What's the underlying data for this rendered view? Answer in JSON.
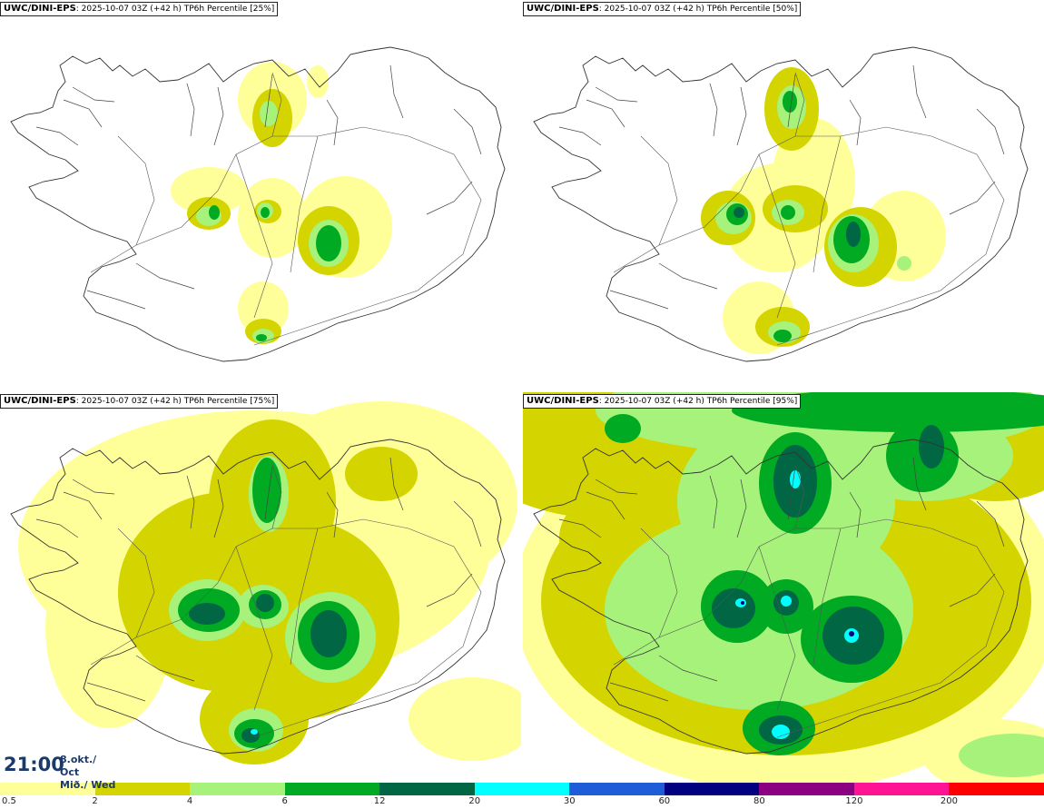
{
  "panels": [
    {
      "model": "UWC/DINI-EPS",
      "run": ": 2025-10-07 03Z (+42 h)",
      "field": " TP6h Percentile [25%]",
      "level": 1
    },
    {
      "model": "UWC/DINI-EPS",
      "run": ": 2025-10-07 03Z (+42 h)",
      "field": " TP6h Percentile [50%]",
      "level": 2
    },
    {
      "model": "UWC/DINI-EPS",
      "run": ": 2025-10-07 03Z (+42 h)",
      "field": " TP6h Percentile [75%]",
      "level": 3
    },
    {
      "model": "UWC/DINI-EPS",
      "run": ": 2025-10-07 03Z (+42 h)",
      "field": " TP6h Percentile [95%]",
      "level": 4
    }
  ],
  "valid_time": {
    "time": "21:00",
    "date_line1": "8.okt./ Oct",
    "date_line2": "Mið./ Wed"
  },
  "legend": {
    "ticks": [
      "0.5",
      "2",
      "4",
      "6",
      "12",
      "20",
      "30",
      "60",
      "80",
      "120",
      "200"
    ],
    "colors": [
      "#ffff99",
      "#d4d400",
      "#a6f27a",
      "#00aa22",
      "#006644",
      "#00ffff",
      "#1e5cd8",
      "#000080",
      "#8b0080",
      "#ff1493",
      "#ff0000"
    ]
  }
}
